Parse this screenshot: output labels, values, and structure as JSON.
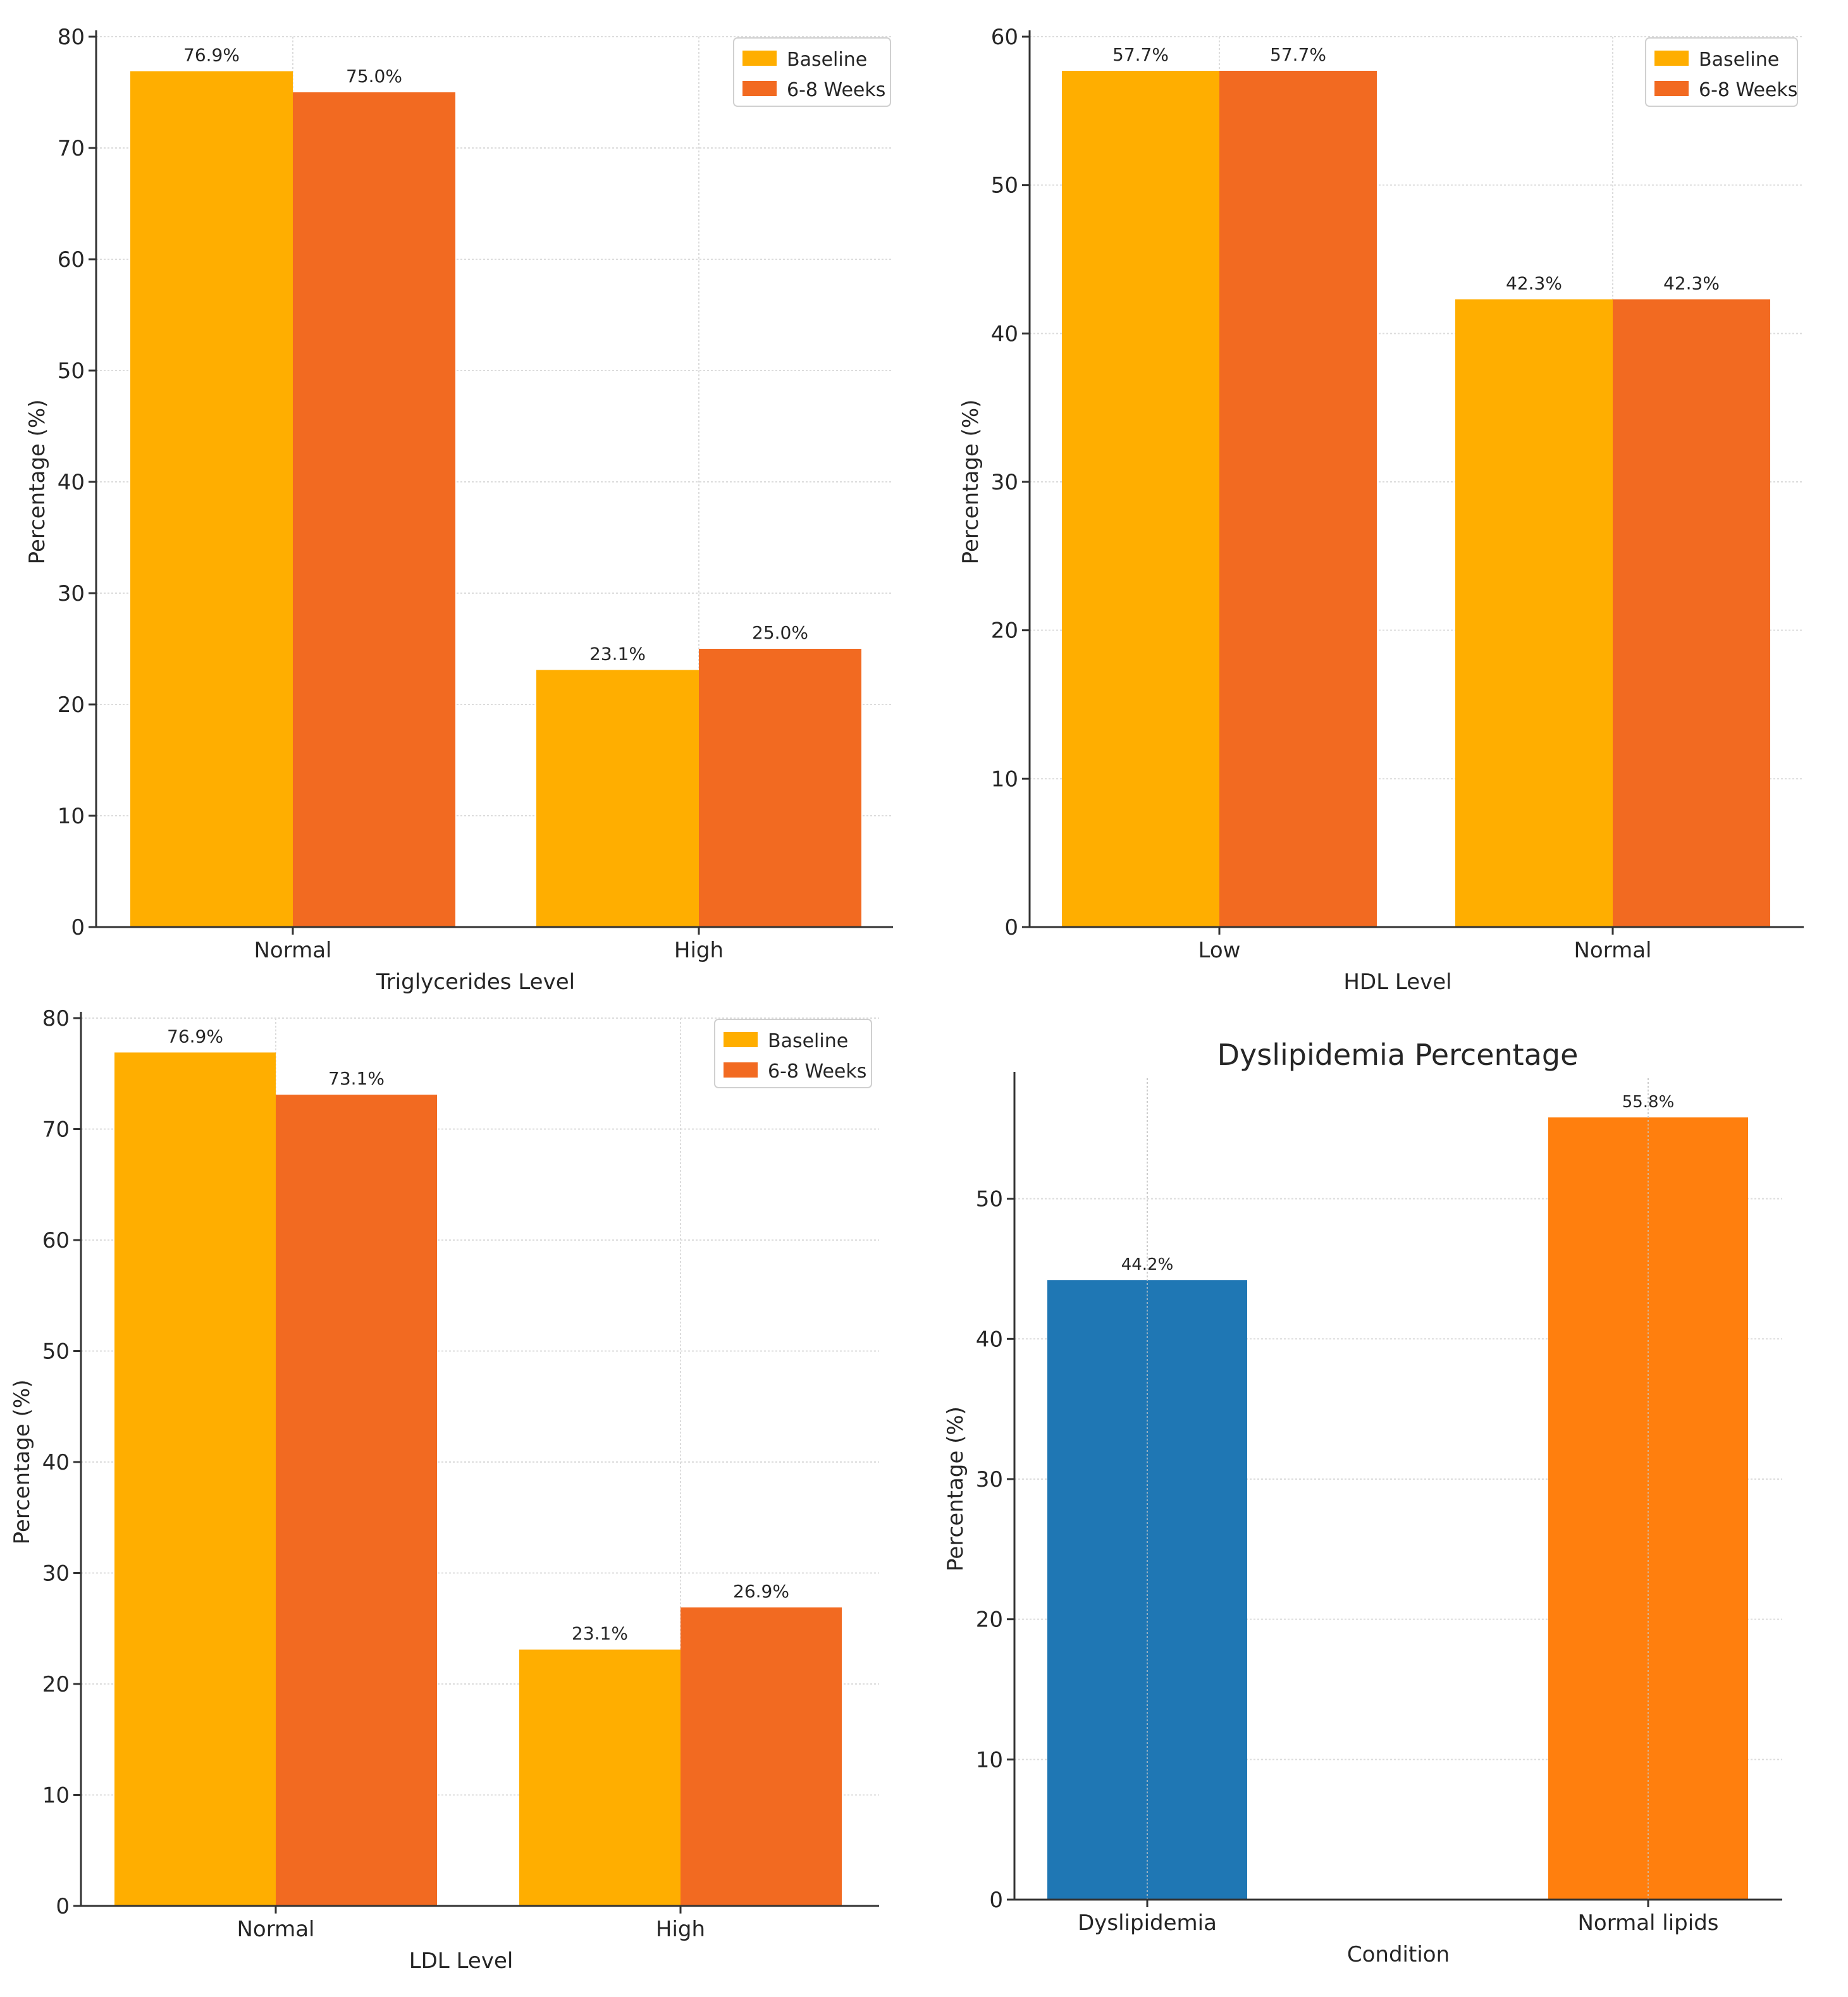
{
  "chart_data": [
    {
      "id": "triglycerides",
      "type": "bar",
      "title": "",
      "xlabel": "Triglycerides Level",
      "ylabel": "Percentage (%)",
      "categories": [
        "Normal",
        "High"
      ],
      "series": [
        {
          "name": "Baseline",
          "color": "#FFAE00",
          "values": [
            76.9,
            23.1
          ],
          "labels": [
            "76.9%",
            "23.1%"
          ]
        },
        {
          "name": "6-8 Weeks",
          "color": "#F26A21",
          "values": [
            75.0,
            25.0
          ],
          "labels": [
            "75.0%",
            "25.0%"
          ]
        }
      ],
      "ylim": [
        0,
        80
      ],
      "yticks": [
        0,
        10,
        20,
        30,
        40,
        50,
        60,
        70,
        80
      ],
      "grid": true,
      "legend": "top-right"
    },
    {
      "id": "hdl",
      "type": "bar",
      "title": "",
      "xlabel": "HDL Level",
      "ylabel": "Percentage (%)",
      "categories": [
        "Low",
        "Normal"
      ],
      "series": [
        {
          "name": "Baseline",
          "color": "#FFAE00",
          "values": [
            57.7,
            42.3
          ],
          "labels": [
            "57.7%",
            "42.3%"
          ]
        },
        {
          "name": "6-8 Weeks",
          "color": "#F26A21",
          "values": [
            57.7,
            42.3
          ],
          "labels": [
            "57.7%",
            "42.3%"
          ]
        }
      ],
      "ylim": [
        0,
        60
      ],
      "yticks": [
        0,
        10,
        20,
        30,
        40,
        50,
        60
      ],
      "grid": true,
      "legend": "top-right"
    },
    {
      "id": "ldl",
      "type": "bar",
      "title": "",
      "xlabel": "LDL Level",
      "ylabel": "Percentage (%)",
      "categories": [
        "Normal",
        "High"
      ],
      "series": [
        {
          "name": "Baseline",
          "color": "#FFAE00",
          "values": [
            76.9,
            23.1
          ],
          "labels": [
            "76.9%",
            "23.1%"
          ]
        },
        {
          "name": "6-8 Weeks",
          "color": "#F26A21",
          "values": [
            73.1,
            26.9
          ],
          "labels": [
            "73.1%",
            "26.9%"
          ]
        }
      ],
      "ylim": [
        0,
        80
      ],
      "yticks": [
        0,
        10,
        20,
        30,
        40,
        50,
        60,
        70,
        80
      ],
      "grid": true,
      "legend": "top-right"
    },
    {
      "id": "dyslipidemia",
      "type": "bar",
      "title": "Dyslipidemia Percentage",
      "xlabel": "Condition",
      "ylabel": "Percentage (%)",
      "categories": [
        "Dyslipidemia",
        "Normal lipids"
      ],
      "values": [
        44.2,
        55.8
      ],
      "labels": [
        "44.2%",
        "55.8%"
      ],
      "colors": [
        "#1F77B4",
        "#FF7F0E"
      ],
      "ylim": [
        0,
        58.6
      ],
      "yticks": [
        0,
        10,
        20,
        30,
        40,
        50
      ],
      "grid": true,
      "legend": "none"
    }
  ]
}
